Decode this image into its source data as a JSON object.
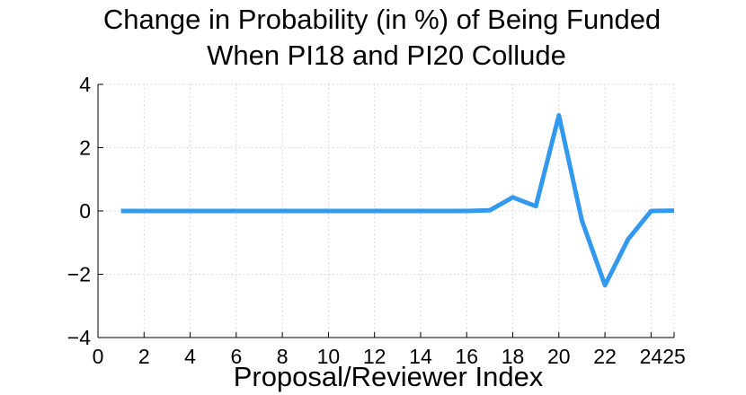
{
  "chart_data": {
    "type": "line",
    "title": [
      "Change in Probability (in %) of Being Funded",
      "When PI18 and PI20 Collude"
    ],
    "xlabel": "Proposal/Reviewer Index",
    "ylabel": "",
    "xlim": [
      0,
      25
    ],
    "ylim": [
      -4,
      4
    ],
    "x_ticks": [
      0,
      2,
      4,
      6,
      8,
      10,
      12,
      14,
      16,
      18,
      20,
      22,
      24,
      25
    ],
    "x_tick_labels": [
      "0",
      "2",
      "4",
      "6",
      "8",
      "10",
      "12",
      "14",
      "16",
      "18",
      "20",
      "22",
      "24",
      "25"
    ],
    "y_ticks": [
      -4,
      -2,
      0,
      2,
      4
    ],
    "y_tick_labels": [
      "−4",
      "−2",
      "0",
      "2",
      "4"
    ],
    "grid": true,
    "series": [
      {
        "color": "#3399ee",
        "x": [
          1,
          2,
          3,
          4,
          5,
          6,
          7,
          8,
          9,
          10,
          11,
          12,
          13,
          14,
          15,
          16,
          17,
          18,
          19,
          20,
          21,
          22,
          23,
          24,
          25
        ],
        "values": [
          0,
          0,
          0,
          0,
          0,
          0,
          0,
          0,
          0,
          0,
          0,
          0,
          0,
          0,
          0,
          0,
          0.02,
          0.43,
          0.15,
          3.02,
          -0.3,
          -2.35,
          -0.9,
          0,
          0.01
        ]
      }
    ]
  }
}
